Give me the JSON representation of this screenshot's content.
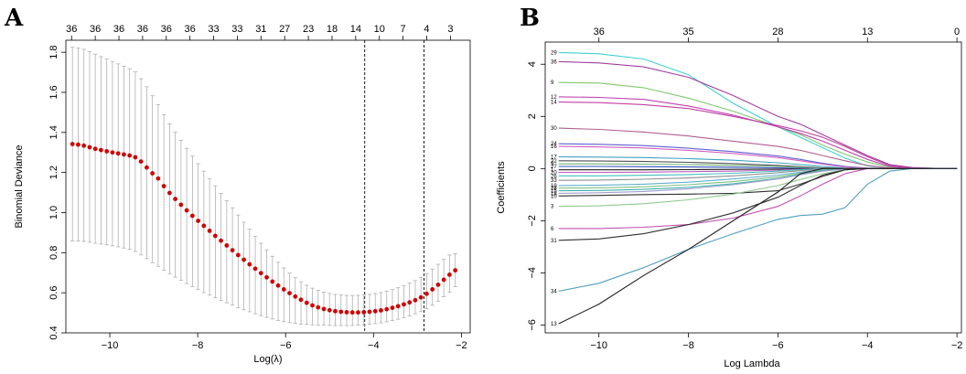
{
  "chart_data": [
    {
      "panel": "A",
      "type": "line",
      "title": "",
      "xlabel": "Log(λ)",
      "ylabel": "Binomial Deviance",
      "xlim": [
        -11.0,
        -1.8
      ],
      "ylim": [
        0.4,
        1.86
      ],
      "x_ticks": [
        -10,
        -8,
        -6,
        -4,
        -2
      ],
      "y_ticks": [
        0.4,
        0.6,
        0.8,
        1.0,
        1.2,
        1.4,
        1.6,
        1.8
      ],
      "y_tick_labels": [
        "0.4",
        "0.6",
        "0.8",
        "1.0",
        "1.2",
        "1.4",
        "1.6",
        "1.8"
      ],
      "top_labels": [
        "36",
        "36",
        "36",
        "36",
        "36",
        "36",
        "33",
        "33",
        "31",
        "27",
        "23",
        "18",
        "14",
        "10",
        "7",
        "4",
        "3"
      ],
      "vlines": [
        -4.2,
        -2.85
      ],
      "point_color": "#d00000",
      "errorbar_color": "#b0b0b0",
      "x": [
        -10.85,
        -10.72,
        -10.59,
        -10.46,
        -10.33,
        -10.2,
        -10.07,
        -9.94,
        -9.81,
        -9.68,
        -9.55,
        -9.42,
        -9.29,
        -9.16,
        -9.03,
        -8.9,
        -8.77,
        -8.64,
        -8.51,
        -8.38,
        -8.25,
        -8.12,
        -7.99,
        -7.86,
        -7.73,
        -7.6,
        -7.47,
        -7.34,
        -7.21,
        -7.08,
        -6.95,
        -6.82,
        -6.69,
        -6.56,
        -6.43,
        -6.3,
        -6.17,
        -6.04,
        -5.91,
        -5.78,
        -5.65,
        -5.52,
        -5.39,
        -5.26,
        -5.13,
        -5.0,
        -4.87,
        -4.74,
        -4.61,
        -4.48,
        -4.35,
        -4.22,
        -4.09,
        -3.96,
        -3.83,
        -3.7,
        -3.57,
        -3.44,
        -3.31,
        -3.18,
        -3.05,
        -2.92,
        -2.79,
        -2.66,
        -2.53,
        -2.4,
        -2.27,
        -2.14
      ],
      "y": [
        1.342,
        1.339,
        1.334,
        1.326,
        1.318,
        1.312,
        1.306,
        1.3,
        1.295,
        1.29,
        1.285,
        1.276,
        1.255,
        1.225,
        1.196,
        1.17,
        1.132,
        1.098,
        1.068,
        1.039,
        1.011,
        0.984,
        0.959,
        0.934,
        0.909,
        0.884,
        0.86,
        0.836,
        0.812,
        0.788,
        0.765,
        0.742,
        0.72,
        0.698,
        0.677,
        0.656,
        0.636,
        0.617,
        0.598,
        0.581,
        0.565,
        0.55,
        0.537,
        0.527,
        0.519,
        0.513,
        0.508,
        0.505,
        0.503,
        0.502,
        0.502,
        0.503,
        0.505,
        0.508,
        0.512,
        0.518,
        0.525,
        0.533,
        0.542,
        0.552,
        0.563,
        0.577,
        0.595,
        0.617,
        0.64,
        0.665,
        0.69,
        0.712
      ],
      "y_upper": [
        1.825,
        1.822,
        1.815,
        1.803,
        1.79,
        1.778,
        1.766,
        1.754,
        1.742,
        1.73,
        1.718,
        1.702,
        1.668,
        1.628,
        1.583,
        1.539,
        1.488,
        1.443,
        1.401,
        1.36,
        1.321,
        1.282,
        1.244,
        1.207,
        1.17,
        1.133,
        1.096,
        1.06,
        1.024,
        0.988,
        0.952,
        0.917,
        0.882,
        0.847,
        0.814,
        0.782,
        0.752,
        0.724,
        0.698,
        0.675,
        0.655,
        0.638,
        0.623,
        0.612,
        0.603,
        0.597,
        0.592,
        0.589,
        0.587,
        0.586,
        0.587,
        0.589,
        0.592,
        0.596,
        0.601,
        0.608,
        0.616,
        0.625,
        0.636,
        0.648,
        0.661,
        0.676,
        0.695,
        0.718,
        0.742,
        0.766,
        0.788,
        0.795
      ],
      "y_lower": [
        0.859,
        0.858,
        0.856,
        0.852,
        0.847,
        0.843,
        0.839,
        0.834,
        0.829,
        0.823,
        0.816,
        0.806,
        0.789,
        0.77,
        0.75,
        0.732,
        0.712,
        0.695,
        0.678,
        0.662,
        0.646,
        0.631,
        0.616,
        0.601,
        0.588,
        0.575,
        0.562,
        0.55,
        0.538,
        0.526,
        0.515,
        0.505,
        0.495,
        0.486,
        0.477,
        0.469,
        0.462,
        0.456,
        0.451,
        0.447,
        0.444,
        0.442,
        0.44,
        0.439,
        0.438,
        0.437,
        0.436,
        0.436,
        0.436,
        0.437,
        0.438,
        0.44,
        0.443,
        0.446,
        0.45,
        0.455,
        0.461,
        0.468,
        0.476,
        0.485,
        0.495,
        0.506,
        0.52,
        0.538,
        0.558,
        0.58,
        0.603,
        0.63
      ]
    },
    {
      "panel": "B",
      "type": "line",
      "title": "",
      "xlabel": "Log Lambda",
      "ylabel": "Coefficients",
      "xlim": [
        -11.2,
        -1.9
      ],
      "ylim": [
        -6.3,
        4.85
      ],
      "x_ticks": [
        -10,
        -8,
        -6,
        -4,
        -2
      ],
      "y_ticks": [
        -6,
        -4,
        -2,
        0,
        2,
        4
      ],
      "top_ticks": [
        -10,
        -8,
        -6,
        -4,
        -2
      ],
      "top_labels": [
        "36",
        "35",
        "28",
        "13",
        "0"
      ],
      "x_grid": [
        -10.9,
        -10.0,
        -9.0,
        -8.0,
        -7.0,
        -6.0,
        -5.5,
        -5.0,
        -4.5,
        -4.0,
        -3.5,
        -3.0,
        -2.5,
        -2.0
      ],
      "series": [
        {
          "name": "29",
          "color": "#40d0d0",
          "values": [
            4.45,
            4.4,
            4.2,
            3.6,
            2.5,
            1.6,
            1.2,
            0.8,
            0.4,
            0.1,
            0.02,
            0.0,
            0.0,
            0.0
          ]
        },
        {
          "name": "36",
          "color": "#a040a0",
          "values": [
            4.1,
            4.05,
            3.9,
            3.5,
            2.8,
            2.0,
            1.7,
            1.3,
            0.9,
            0.5,
            0.15,
            0.04,
            0.01,
            0.0
          ]
        },
        {
          "name": "9",
          "color": "#80c870",
          "values": [
            3.3,
            3.28,
            3.1,
            2.7,
            2.2,
            1.6,
            1.3,
            0.9,
            0.55,
            0.25,
            0.05,
            0.0,
            0.0,
            0.0
          ]
        },
        {
          "name": "12",
          "color": "#c040b0",
          "values": [
            2.75,
            2.73,
            2.65,
            2.4,
            2.05,
            1.6,
            1.35,
            1.05,
            0.7,
            0.35,
            0.08,
            0.0,
            0.0,
            0.0
          ]
        },
        {
          "name": "14",
          "color": "#c040a0",
          "values": [
            2.55,
            2.53,
            2.45,
            2.3,
            2.0,
            1.65,
            1.45,
            1.2,
            0.85,
            0.45,
            0.12,
            0.02,
            0.0,
            0.0
          ]
        },
        {
          "name": "30",
          "color": "#b06090",
          "values": [
            1.55,
            1.5,
            1.4,
            1.25,
            1.05,
            0.85,
            0.7,
            0.5,
            0.3,
            0.12,
            0.02,
            0.0,
            0.0,
            0.0
          ]
        },
        {
          "name": "24",
          "color": "#6060d0",
          "values": [
            0.95,
            0.93,
            0.88,
            0.78,
            0.65,
            0.48,
            0.35,
            0.2,
            0.08,
            0.02,
            0.0,
            0.0,
            0.0,
            0.0
          ]
        },
        {
          "name": "16",
          "color": "#d060c0",
          "values": [
            0.85,
            0.83,
            0.79,
            0.7,
            0.58,
            0.42,
            0.3,
            0.17,
            0.06,
            0.01,
            0.0,
            0.0,
            0.0,
            0.0
          ]
        },
        {
          "name": "17",
          "color": "#40a0c0",
          "values": [
            0.45,
            0.44,
            0.42,
            0.38,
            0.32,
            0.22,
            0.15,
            0.08,
            0.02,
            0.0,
            0.0,
            0.0,
            0.0,
            0.0
          ]
        },
        {
          "name": "22",
          "color": "#505050",
          "values": [
            0.3,
            0.29,
            0.27,
            0.24,
            0.19,
            0.12,
            0.07,
            0.03,
            0.0,
            0.0,
            0.0,
            0.0,
            0.0,
            0.0
          ]
        },
        {
          "name": "5",
          "color": "#70b070",
          "values": [
            0.18,
            0.18,
            0.17,
            0.15,
            0.12,
            0.08,
            0.05,
            0.02,
            0.0,
            0.0,
            0.0,
            0.0,
            0.0,
            0.0
          ]
        },
        {
          "name": "27",
          "color": "#3050c0",
          "values": [
            0.08,
            0.08,
            0.07,
            0.06,
            0.05,
            0.03,
            0.01,
            0.0,
            0.0,
            0.0,
            0.0,
            0.0,
            0.0,
            0.0
          ]
        },
        {
          "name": "1",
          "color": "#202020",
          "values": [
            -0.05,
            -0.05,
            -0.05,
            -0.04,
            -0.03,
            -0.02,
            -0.01,
            0.0,
            0.0,
            0.0,
            0.0,
            0.0,
            0.0,
            0.0
          ]
        },
        {
          "name": "20",
          "color": "#c060c0",
          "values": [
            -0.15,
            -0.15,
            -0.14,
            -0.12,
            -0.1,
            -0.06,
            -0.03,
            0.0,
            0.0,
            0.0,
            0.0,
            0.0,
            0.0,
            0.0
          ]
        },
        {
          "name": "26",
          "color": "#40c0c0",
          "values": [
            -0.28,
            -0.28,
            -0.26,
            -0.23,
            -0.18,
            -0.1,
            -0.04,
            -0.01,
            0.0,
            0.0,
            0.0,
            0.0,
            0.0,
            0.0
          ]
        },
        {
          "name": "33",
          "color": "#909090",
          "values": [
            -0.45,
            -0.44,
            -0.41,
            -0.36,
            -0.28,
            -0.16,
            -0.08,
            -0.02,
            0.0,
            0.0,
            0.0,
            0.0,
            0.0,
            0.0
          ]
        },
        {
          "name": "19",
          "color": "#60b0d0",
          "values": [
            -0.65,
            -0.64,
            -0.6,
            -0.52,
            -0.4,
            -0.25,
            -0.14,
            -0.05,
            0.0,
            0.0,
            0.0,
            0.0,
            0.0,
            0.0
          ]
        },
        {
          "name": "28",
          "color": "#80c080",
          "values": [
            -0.75,
            -0.74,
            -0.7,
            -0.62,
            -0.5,
            -0.32,
            -0.18,
            -0.06,
            0.0,
            0.0,
            0.0,
            0.0,
            0.0,
            0.0
          ]
        },
        {
          "name": "15",
          "color": "#40b0b0",
          "values": [
            -0.85,
            -0.84,
            -0.8,
            -0.72,
            -0.58,
            -0.38,
            -0.22,
            -0.08,
            -0.01,
            0.0,
            0.0,
            0.0,
            0.0,
            0.0
          ]
        },
        {
          "name": "18",
          "color": "#a0a0d0",
          "values": [
            -0.95,
            -0.93,
            -0.88,
            -0.78,
            -0.62,
            -0.4,
            -0.24,
            -0.1,
            -0.02,
            0.0,
            0.0,
            0.0,
            0.0,
            0.0
          ]
        },
        {
          "name": "10",
          "color": "#303030",
          "values": [
            -1.05,
            -1.03,
            -1.0,
            -0.98,
            -0.95,
            -0.85,
            -0.6,
            -0.3,
            -0.05,
            0.0,
            0.0,
            0.0,
            0.0,
            0.0
          ]
        },
        {
          "name": "3",
          "color": "#90c890",
          "values": [
            -1.45,
            -1.43,
            -1.35,
            -1.2,
            -0.98,
            -0.65,
            -0.42,
            -0.2,
            -0.05,
            0.0,
            0.0,
            0.0,
            0.0,
            0.0
          ]
        },
        {
          "name": "6",
          "color": "#c050b0",
          "values": [
            -2.3,
            -2.3,
            -2.25,
            -2.15,
            -1.9,
            -1.45,
            -1.05,
            -0.6,
            -0.2,
            0.0,
            0.0,
            0.0,
            0.0,
            0.0
          ]
        },
        {
          "name": "31",
          "color": "#303030",
          "values": [
            -2.75,
            -2.7,
            -2.5,
            -2.15,
            -1.7,
            -1.1,
            -0.65,
            -0.25,
            -0.05,
            0.0,
            0.0,
            0.0,
            0.0,
            0.0
          ]
        },
        {
          "name": "34",
          "color": "#50a0c0",
          "values": [
            -4.7,
            -4.4,
            -3.8,
            -3.1,
            -2.5,
            -1.95,
            -1.8,
            -1.75,
            -1.5,
            -0.6,
            -0.1,
            0.0,
            0.0,
            0.0
          ]
        },
        {
          "name": "13",
          "color": "#202020",
          "values": [
            -5.95,
            -5.2,
            -4.1,
            -3.1,
            -2.0,
            -0.9,
            -0.2,
            0.0,
            0.0,
            0.0,
            0.0,
            0.0,
            0.0,
            0.0
          ]
        }
      ]
    }
  ]
}
